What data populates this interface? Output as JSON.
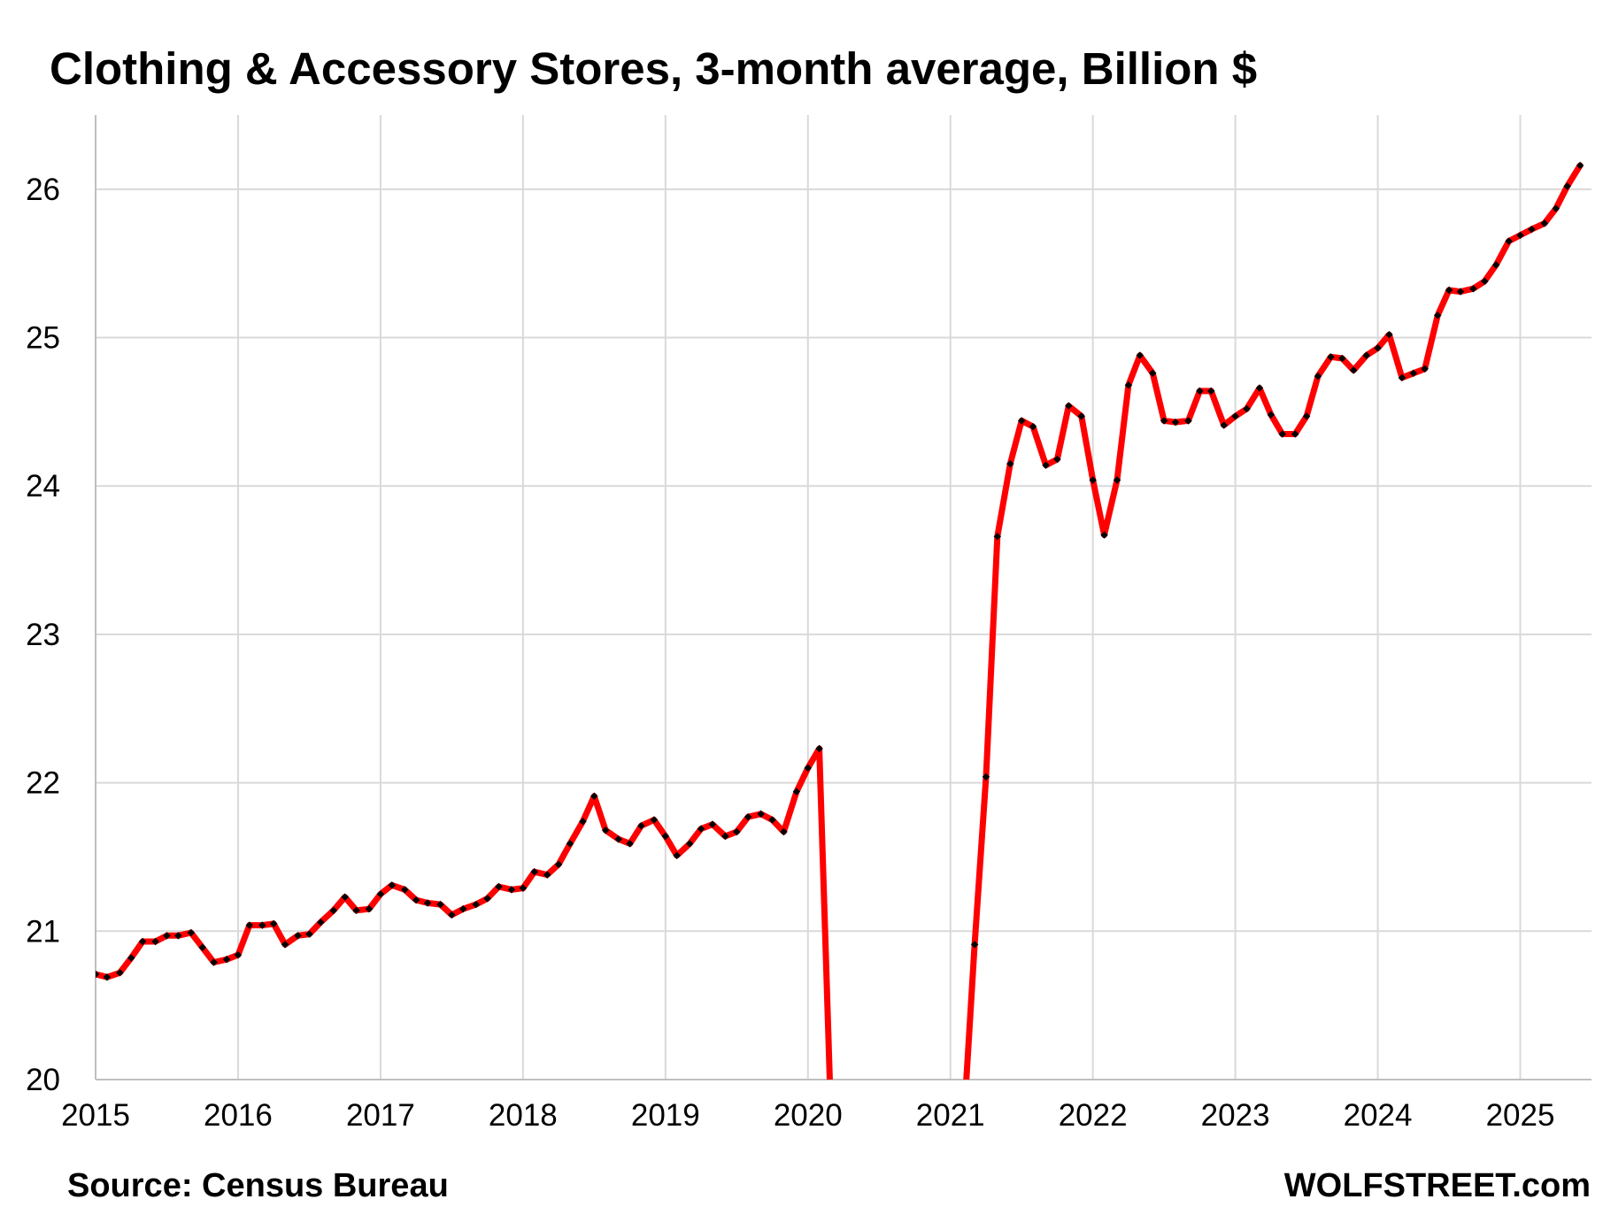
{
  "chart_data": {
    "type": "line",
    "title": "Clothing & Accessory Stores, 3-month average, Billion $",
    "xlabel": "",
    "ylabel": "",
    "xlim": [
      2015.0,
      2025.5
    ],
    "ylim": [
      20,
      26.5
    ],
    "x_ticks": [
      "2015",
      "2016",
      "2017",
      "2018",
      "2019",
      "2020",
      "2021",
      "2022",
      "2023",
      "2024",
      "2025"
    ],
    "y_ticks": [
      20,
      21,
      22,
      23,
      24,
      25,
      26
    ],
    "grid": true,
    "legend": "none",
    "series": [
      {
        "color": "#ff0000",
        "marker_color": "#000000",
        "line_style": "solid red with black dotted markers",
        "points": [
          [
            2015.0,
            20.71
          ],
          [
            2015.08,
            20.69
          ],
          [
            2015.17,
            20.72
          ],
          [
            2015.25,
            20.82
          ],
          [
            2015.33,
            20.93
          ],
          [
            2015.42,
            20.93
          ],
          [
            2015.5,
            20.97
          ],
          [
            2015.58,
            20.97
          ],
          [
            2015.67,
            20.99
          ],
          [
            2015.75,
            20.89
          ],
          [
            2015.83,
            20.79
          ],
          [
            2015.92,
            20.81
          ],
          [
            2016.0,
            20.84
          ],
          [
            2016.08,
            21.04
          ],
          [
            2016.17,
            21.04
          ],
          [
            2016.25,
            21.05
          ],
          [
            2016.33,
            20.91
          ],
          [
            2016.42,
            20.97
          ],
          [
            2016.5,
            20.98
          ],
          [
            2016.58,
            21.06
          ],
          [
            2016.67,
            21.14
          ],
          [
            2016.75,
            21.23
          ],
          [
            2016.83,
            21.14
          ],
          [
            2016.92,
            21.15
          ],
          [
            2017.0,
            21.25
          ],
          [
            2017.08,
            21.31
          ],
          [
            2017.17,
            21.28
          ],
          [
            2017.25,
            21.21
          ],
          [
            2017.33,
            21.19
          ],
          [
            2017.42,
            21.18
          ],
          [
            2017.5,
            21.11
          ],
          [
            2017.58,
            21.15
          ],
          [
            2017.67,
            21.18
          ],
          [
            2017.75,
            21.22
          ],
          [
            2017.83,
            21.3
          ],
          [
            2017.92,
            21.28
          ],
          [
            2018.0,
            21.29
          ],
          [
            2018.08,
            21.4
          ],
          [
            2018.17,
            21.38
          ],
          [
            2018.25,
            21.45
          ],
          [
            2018.33,
            21.59
          ],
          [
            2018.42,
            21.74
          ],
          [
            2018.5,
            21.91
          ],
          [
            2018.58,
            21.68
          ],
          [
            2018.67,
            21.62
          ],
          [
            2018.75,
            21.59
          ],
          [
            2018.83,
            21.71
          ],
          [
            2018.92,
            21.75
          ],
          [
            2019.0,
            21.64
          ],
          [
            2019.08,
            21.51
          ],
          [
            2019.17,
            21.59
          ],
          [
            2019.25,
            21.69
          ],
          [
            2019.33,
            21.72
          ],
          [
            2019.42,
            21.64
          ],
          [
            2019.5,
            21.67
          ],
          [
            2019.58,
            21.77
          ],
          [
            2019.67,
            21.79
          ],
          [
            2019.75,
            21.75
          ],
          [
            2019.83,
            21.67
          ],
          [
            2019.92,
            21.94
          ],
          [
            2020.0,
            22.1
          ],
          [
            2020.08,
            22.23
          ],
          [
            2020.17,
            19.5
          ],
          [
            2021.08,
            19.5
          ],
          [
            2021.17,
            20.91
          ],
          [
            2021.25,
            22.04
          ],
          [
            2021.33,
            23.66
          ],
          [
            2021.42,
            24.15
          ],
          [
            2021.5,
            24.44
          ],
          [
            2021.58,
            24.4
          ],
          [
            2021.67,
            24.14
          ],
          [
            2021.75,
            24.18
          ],
          [
            2021.83,
            24.54
          ],
          [
            2021.92,
            24.47
          ],
          [
            2022.0,
            24.04
          ],
          [
            2022.08,
            23.67
          ],
          [
            2022.17,
            24.04
          ],
          [
            2022.25,
            24.68
          ],
          [
            2022.33,
            24.88
          ],
          [
            2022.42,
            24.76
          ],
          [
            2022.5,
            24.44
          ],
          [
            2022.58,
            24.43
          ],
          [
            2022.67,
            24.44
          ],
          [
            2022.75,
            24.64
          ],
          [
            2022.83,
            24.64
          ],
          [
            2022.92,
            24.41
          ],
          [
            2023.0,
            24.47
          ],
          [
            2023.08,
            24.52
          ],
          [
            2023.17,
            24.66
          ],
          [
            2023.25,
            24.48
          ],
          [
            2023.33,
            24.35
          ],
          [
            2023.42,
            24.35
          ],
          [
            2023.5,
            24.47
          ],
          [
            2023.58,
            24.74
          ],
          [
            2023.67,
            24.87
          ],
          [
            2023.75,
            24.86
          ],
          [
            2023.83,
            24.78
          ],
          [
            2023.92,
            24.88
          ],
          [
            2024.0,
            24.93
          ],
          [
            2024.08,
            25.02
          ],
          [
            2024.17,
            24.73
          ],
          [
            2024.25,
            24.76
          ],
          [
            2024.33,
            24.79
          ],
          [
            2024.42,
            25.15
          ],
          [
            2024.5,
            25.32
          ],
          [
            2024.58,
            25.31
          ],
          [
            2024.67,
            25.33
          ],
          [
            2024.75,
            25.38
          ],
          [
            2024.83,
            25.49
          ],
          [
            2024.92,
            25.65
          ],
          [
            2025.0,
            25.69
          ],
          [
            2025.08,
            25.73
          ],
          [
            2025.17,
            25.77
          ],
          [
            2025.25,
            25.87
          ],
          [
            2025.33,
            26.02
          ],
          [
            2025.42,
            26.16
          ]
        ]
      }
    ]
  },
  "footer": {
    "source": "Source: Census Bureau",
    "brand": "WOLFSTREET.com"
  }
}
